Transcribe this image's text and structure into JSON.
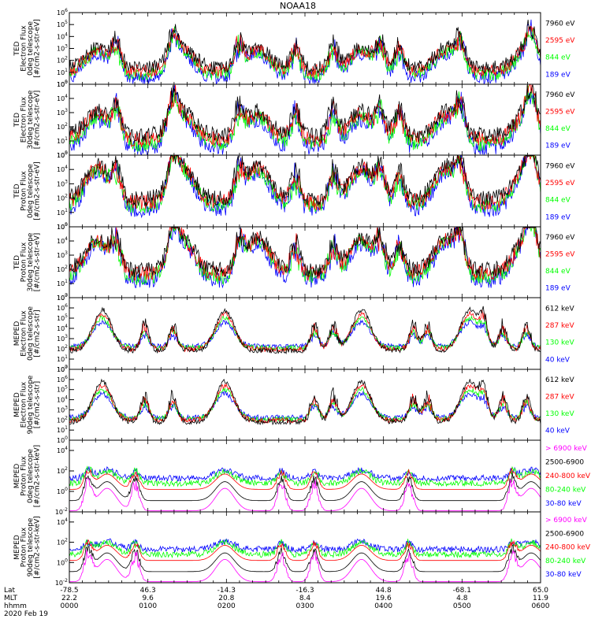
{
  "title": "NOAA18",
  "colors": {
    "black": "#000000",
    "red": "#ff0000",
    "green": "#00ff00",
    "blue": "#0000ff",
    "magenta": "#ff00ff"
  },
  "footer": {
    "row_labels": [
      "Lat",
      "MLT",
      "hhmm"
    ],
    "date": "2020 Feb 19",
    "lat": [
      "-78.5",
      "46.3",
      "-14.3",
      "-16.3",
      "44.8",
      "-68.1",
      "65.0"
    ],
    "mlt": [
      "22.2",
      "9.6",
      "20.8",
      "8.4",
      "19.6",
      "4.8",
      "11.9"
    ],
    "hhmm": [
      "0000",
      "0100",
      "0200",
      "0300",
      "0400",
      "0500",
      "0600"
    ]
  },
  "chart_data": [
    {
      "type": "line",
      "ylabel": [
        "TED",
        "Electron Flux",
        "0deg telescope",
        "[#/cm2-s-str-eV]"
      ],
      "yscale": "log",
      "ylim": [
        1,
        1000000
      ],
      "yticks": [
        "10^0",
        "10^1",
        "10^2",
        "10^3",
        "10^4",
        "10^5",
        "10^6"
      ],
      "legend": [
        {
          "name": "7960 eV",
          "color": "#000000"
        },
        {
          "name": "2595 eV",
          "color": "#ff0000"
        },
        {
          "name": "844 eV",
          "color": "#00ff00"
        },
        {
          "name": "189 eV",
          "color": "#0000ff"
        }
      ]
    },
    {
      "type": "line",
      "ylabel": [
        "TED",
        "Electron Flux",
        "30deg telescope",
        "[#/cm2-s-str-eV]"
      ],
      "yscale": "log",
      "ylim": [
        1,
        100000
      ],
      "yticks": [
        "10^0",
        "10^1",
        "10^2",
        "10^3",
        "10^4",
        "10^5"
      ],
      "legend": [
        {
          "name": "7960 eV",
          "color": "#000000"
        },
        {
          "name": "2595 eV",
          "color": "#ff0000"
        },
        {
          "name": "844 eV",
          "color": "#00ff00"
        },
        {
          "name": "189 eV",
          "color": "#0000ff"
        }
      ]
    },
    {
      "type": "line",
      "ylabel": [
        "TED",
        "Proton Flux",
        "0deg telescope",
        "[#/cm2-s-str-eV]"
      ],
      "yscale": "log",
      "ylim": [
        1,
        100000
      ],
      "yticks": [
        "10^0",
        "10^1",
        "10^2",
        "10^3",
        "10^4",
        "10^5"
      ],
      "legend": [
        {
          "name": "7960 eV",
          "color": "#000000"
        },
        {
          "name": "2595 eV",
          "color": "#ff0000"
        },
        {
          "name": "844 eV",
          "color": "#00ff00"
        },
        {
          "name": "189 eV",
          "color": "#0000ff"
        }
      ]
    },
    {
      "type": "line",
      "ylabel": [
        "TED",
        "Proton Flux",
        "30deg telescope",
        "[#/cm2-s-str-eV]"
      ],
      "yscale": "log",
      "ylim": [
        1,
        100000
      ],
      "yticks": [
        "10^0",
        "10^1",
        "10^2",
        "10^3",
        "10^4",
        "10^5"
      ],
      "legend": [
        {
          "name": "7960 eV",
          "color": "#000000"
        },
        {
          "name": "2595 eV",
          "color": "#ff0000"
        },
        {
          "name": "844 eV",
          "color": "#00ff00"
        },
        {
          "name": "189 eV",
          "color": "#0000ff"
        }
      ]
    },
    {
      "type": "line",
      "ylabel": [
        "MEPED",
        "Electron Flux",
        "0deg telescope",
        "[#/cm2-s-str]"
      ],
      "yscale": "log",
      "ylim": [
        1,
        10000000
      ],
      "yticks": [
        "10^0",
        "10^1",
        "10^2",
        "10^3",
        "10^4",
        "10^5",
        "10^6",
        "10^7"
      ],
      "legend": [
        {
          "name": "612 keV",
          "color": "#000000"
        },
        {
          "name": "287 keV",
          "color": "#ff0000"
        },
        {
          "name": "130 keV",
          "color": "#00ff00"
        },
        {
          "name": "40 keV",
          "color": "#0000ff"
        }
      ]
    },
    {
      "type": "line",
      "ylabel": [
        "MEPED",
        "Electron Flux",
        "90deg telescope",
        "[#/cm2-s-str]"
      ],
      "yscale": "log",
      "ylim": [
        1,
        10000000
      ],
      "yticks": [
        "10^0",
        "10^1",
        "10^2",
        "10^3",
        "10^4",
        "10^5",
        "10^6",
        "10^7"
      ],
      "legend": [
        {
          "name": "612 keV",
          "color": "#000000"
        },
        {
          "name": "287 keV",
          "color": "#ff0000"
        },
        {
          "name": "130 keV",
          "color": "#00ff00"
        },
        {
          "name": "40 keV",
          "color": "#0000ff"
        }
      ]
    },
    {
      "type": "line",
      "ylabel": [
        "MEPED",
        "Proton Flux",
        "0deg telescope",
        "[#/cm2-s-str-keV]"
      ],
      "yscale": "log",
      "ylim": [
        0.01,
        100000
      ],
      "yticks": [
        "10^-2",
        "10^0",
        "10^2",
        "10^4"
      ],
      "legend": [
        {
          "name": "> 6900 keV",
          "color": "#ff00ff"
        },
        {
          "name": "2500-6900",
          "color": "#000000"
        },
        {
          "name": "240-800 keV",
          "color": "#ff0000"
        },
        {
          "name": "80-240 keV",
          "color": "#00ff00"
        },
        {
          "name": "30-80 keV",
          "color": "#0000ff"
        }
      ]
    },
    {
      "type": "line",
      "ylabel": [
        "MEPED",
        "Proton Flux",
        "90deg telescope",
        "[#/cm2-s-str-keV]"
      ],
      "yscale": "log",
      "ylim": [
        0.01,
        100000
      ],
      "yticks": [
        "10^-2",
        "10^0",
        "10^2",
        "10^4"
      ],
      "legend": [
        {
          "name": "> 6900 keV",
          "color": "#ff00ff"
        },
        {
          "name": "2500-6900",
          "color": "#000000"
        },
        {
          "name": "240-800 keV",
          "color": "#ff0000"
        },
        {
          "name": "80-240 keV",
          "color": "#00ff00"
        },
        {
          "name": "30-80 keV",
          "color": "#0000ff"
        }
      ]
    }
  ]
}
